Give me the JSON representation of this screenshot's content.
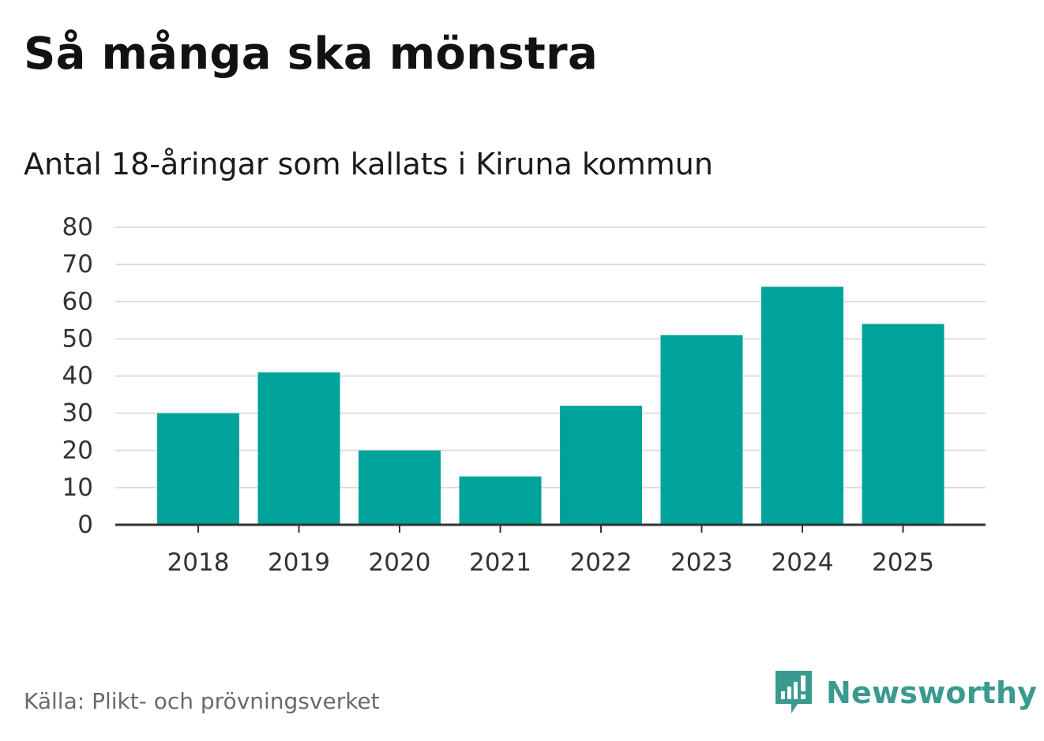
{
  "title": "Så många ska mönstra",
  "subtitle": "Antal 18-åringar som kallats i Kiruna kommun",
  "source": "Källa: Plikt- och prövningsverket",
  "brand": {
    "name": "Newsworthy",
    "icon": "newsworthy-logo-icon",
    "color": "#3a9a8f"
  },
  "colors": {
    "bar": "#00a39a",
    "grid": "#dddddd",
    "axis": "#333333"
  },
  "chart_data": {
    "type": "bar",
    "categories": [
      "2018",
      "2019",
      "2020",
      "2021",
      "2022",
      "2023",
      "2024",
      "2025"
    ],
    "values": [
      30,
      41,
      20,
      13,
      32,
      51,
      64,
      54
    ],
    "ylim": [
      0,
      80
    ],
    "yticks": [
      0,
      10,
      20,
      30,
      40,
      50,
      60,
      70,
      80
    ],
    "xlabel": "",
    "ylabel": "",
    "grid": true,
    "legend": false
  }
}
